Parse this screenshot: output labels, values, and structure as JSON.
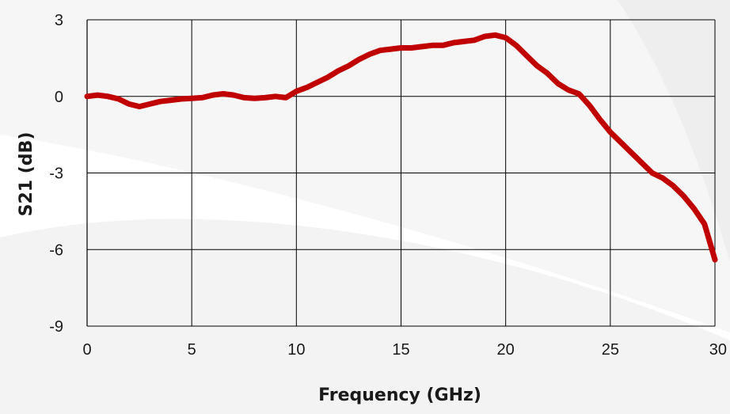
{
  "chart_data": {
    "type": "line",
    "title": "",
    "xlabel": "Frequency (GHz)",
    "ylabel": "S21 (dB)",
    "xlim": [
      0,
      30
    ],
    "ylim": [
      -9,
      3
    ],
    "x_ticks": [
      "0",
      "5",
      "10",
      "15",
      "20",
      "25",
      "30"
    ],
    "y_ticks": [
      "3",
      "0",
      "-3",
      "-6",
      "-9"
    ],
    "grid": true,
    "legend": "none",
    "series": [
      {
        "color": "#c00000",
        "x": [
          0,
          0.5,
          1,
          1.5,
          2,
          2.5,
          3,
          3.5,
          4,
          4.5,
          5,
          5.5,
          6,
          6.5,
          7,
          7.5,
          8,
          8.5,
          9,
          9.5,
          10,
          10.5,
          11,
          11.5,
          12,
          12.5,
          13,
          13.5,
          14,
          14.5,
          15,
          15.5,
          16,
          16.5,
          17,
          17.5,
          18,
          18.5,
          19,
          19.5,
          20,
          20.5,
          21,
          21.5,
          22,
          22.5,
          23,
          23.5,
          24,
          24.5,
          25,
          25.5,
          26,
          26.5,
          27,
          27.5,
          28,
          28.5,
          29,
          29.5,
          30
        ],
        "y": [
          0.0,
          0.05,
          0.0,
          -0.1,
          -0.3,
          -0.4,
          -0.3,
          -0.2,
          -0.15,
          -0.1,
          -0.08,
          -0.05,
          0.05,
          0.1,
          0.05,
          -0.05,
          -0.08,
          -0.05,
          0.0,
          -0.05,
          0.2,
          0.35,
          0.55,
          0.75,
          1.0,
          1.2,
          1.45,
          1.65,
          1.8,
          1.85,
          1.9,
          1.9,
          1.95,
          2.0,
          2.0,
          2.1,
          2.15,
          2.2,
          2.35,
          2.4,
          2.3,
          2.0,
          1.6,
          1.2,
          0.9,
          0.5,
          0.25,
          0.1,
          -0.35,
          -0.9,
          -1.4,
          -1.8,
          -2.2,
          -2.6,
          -3.0,
          -3.2,
          -3.5,
          -3.9,
          -4.4,
          -5.0,
          -6.4
        ]
      }
    ]
  }
}
